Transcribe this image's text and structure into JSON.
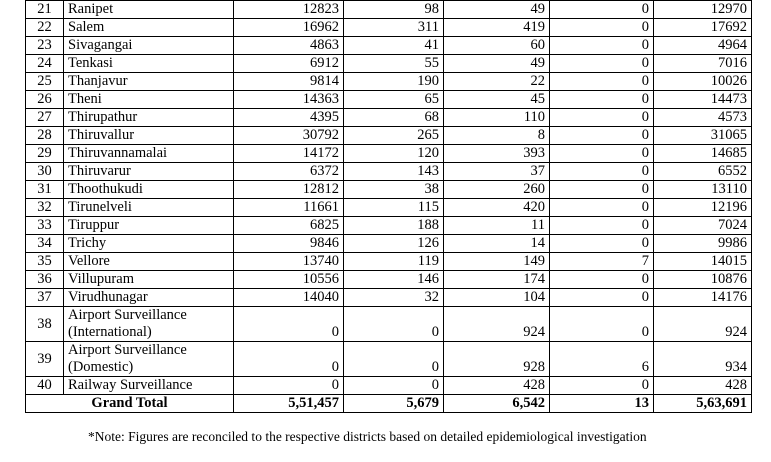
{
  "table": {
    "rows": [
      [
        21,
        "Ranipet",
        12823,
        98,
        49,
        0,
        12970
      ],
      [
        22,
        "Salem",
        16962,
        311,
        419,
        0,
        17692
      ],
      [
        23,
        "Sivagangai",
        4863,
        41,
        60,
        0,
        4964
      ],
      [
        24,
        "Tenkasi",
        6912,
        55,
        49,
        0,
        7016
      ],
      [
        25,
        "Thanjavur",
        9814,
        190,
        22,
        0,
        10026
      ],
      [
        26,
        "Theni",
        14363,
        65,
        45,
        0,
        14473
      ],
      [
        27,
        "Thirupathur",
        4395,
        68,
        110,
        0,
        4573
      ],
      [
        28,
        "Thiruvallur",
        30792,
        265,
        8,
        0,
        31065
      ],
      [
        29,
        "Thiruvannamalai",
        14172,
        120,
        393,
        0,
        14685
      ],
      [
        30,
        "Thiruvarur",
        6372,
        143,
        37,
        0,
        6552
      ],
      [
        31,
        "Thoothukudi",
        12812,
        38,
        260,
        0,
        13110
      ],
      [
        32,
        "Tirunelveli",
        11661,
        115,
        420,
        0,
        12196
      ],
      [
        33,
        "Tiruppur",
        6825,
        188,
        11,
        0,
        7024
      ],
      [
        34,
        "Trichy",
        9846,
        126,
        14,
        0,
        9986
      ],
      [
        35,
        "Vellore",
        13740,
        119,
        149,
        7,
        14015
      ],
      [
        36,
        "Villupuram",
        10556,
        146,
        174,
        0,
        10876
      ],
      [
        37,
        "Virudhunagar",
        14040,
        32,
        104,
        0,
        14176
      ],
      [
        38,
        "Airport Surveillance\n(International)",
        0,
        0,
        924,
        0,
        924
      ],
      [
        39,
        "Airport Surveillance\n(Domestic)",
        0,
        0,
        928,
        6,
        934
      ],
      [
        40,
        "Railway Surveillance",
        0,
        0,
        428,
        0,
        428
      ]
    ],
    "total": [
      "Grand Total",
      "5,51,457",
      "5,679",
      "6,542",
      13,
      "5,63,691"
    ]
  },
  "note": "*Note: Figures are reconciled to the respective districts based on detailed epidemiological investigation"
}
